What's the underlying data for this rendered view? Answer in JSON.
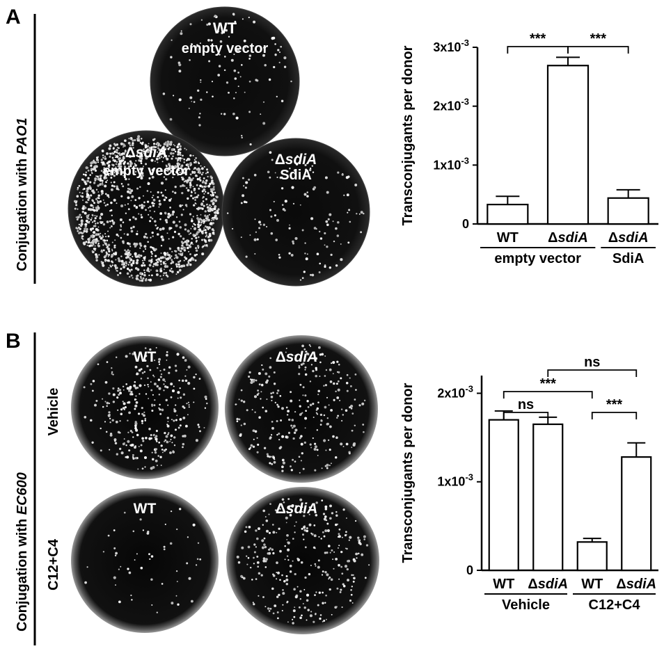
{
  "panelA": {
    "letter": "A",
    "side_label_prefix": "Conjugation with ",
    "side_label_strain": "PAO1",
    "plates": [
      {
        "line1": "WT",
        "line2": "empty vector",
        "delta": false
      },
      {
        "line1": "sdiA",
        "line2": "empty vector",
        "delta": true
      },
      {
        "line1": "sdiA",
        "line2": "SdiA",
        "delta": true
      }
    ]
  },
  "panelB": {
    "letter": "B",
    "side_label_prefix": "Conjugation with ",
    "side_label_strain": "EC600",
    "row_labels": [
      "Vehicle",
      "C12+C4"
    ],
    "col_labels": [
      {
        "text": "WT",
        "delta": false
      },
      {
        "text": "sdiA",
        "delta": true
      }
    ]
  },
  "delta_symbol": "Δ",
  "chart_data": [
    {
      "type": "bar",
      "ylabel": "Transconjugants per donor",
      "ylim": [
        0,
        0.003
      ],
      "yticks": [
        {
          "value": 0,
          "base": "0",
          "exp": ""
        },
        {
          "value": 0.001,
          "base": "1x10",
          "exp": "-3"
        },
        {
          "value": 0.002,
          "base": "2x10",
          "exp": "-3"
        },
        {
          "value": 0.003,
          "base": "3x10",
          "exp": "-3"
        }
      ],
      "categories": [
        {
          "label": "WT",
          "delta": false
        },
        {
          "label": "sdiA",
          "delta": true
        },
        {
          "label": "sdiA",
          "delta": true
        }
      ],
      "values": [
        0.00033,
        0.00269,
        0.00044
      ],
      "errors": [
        0.00014,
        0.00014,
        0.00014
      ],
      "groups": [
        {
          "label": "empty vector",
          "from": 0,
          "to": 1
        },
        {
          "label": "SdiA",
          "from": 2,
          "to": 2
        }
      ],
      "comparisons": [
        {
          "a": 0,
          "b": 1,
          "label": "***",
          "level": 0
        },
        {
          "a": 1,
          "b": 2,
          "label": "***",
          "level": 0
        }
      ]
    },
    {
      "type": "bar",
      "ylabel": "Transconjugants per donor",
      "ylim": [
        0,
        0.0022
      ],
      "yticks": [
        {
          "value": 0,
          "base": "0",
          "exp": ""
        },
        {
          "value": 0.001,
          "base": "1x10",
          "exp": "-3"
        },
        {
          "value": 0.002,
          "base": "2x10",
          "exp": "-3"
        }
      ],
      "categories": [
        {
          "label": "WT",
          "delta": false
        },
        {
          "label": "sdiA",
          "delta": true
        },
        {
          "label": "WT",
          "delta": false
        },
        {
          "label": "sdiA",
          "delta": true
        }
      ],
      "values": [
        0.0017,
        0.00165,
        0.00032,
        0.00128
      ],
      "errors": [
        0.0001,
        8e-05,
        4e-05,
        0.00016
      ],
      "groups": [
        {
          "label": "Vehicle",
          "from": 0,
          "to": 1
        },
        {
          "label": "C12+C4",
          "from": 2,
          "to": 3
        }
      ],
      "comparisons": [
        {
          "a": 0,
          "b": 1,
          "label": "ns",
          "level": 0
        },
        {
          "a": 2,
          "b": 3,
          "label": "***",
          "level": 0
        },
        {
          "a": 0,
          "b": 2,
          "label": "***",
          "level": 1
        },
        {
          "a": 1,
          "b": 3,
          "label": "ns",
          "level": 2
        }
      ]
    }
  ]
}
